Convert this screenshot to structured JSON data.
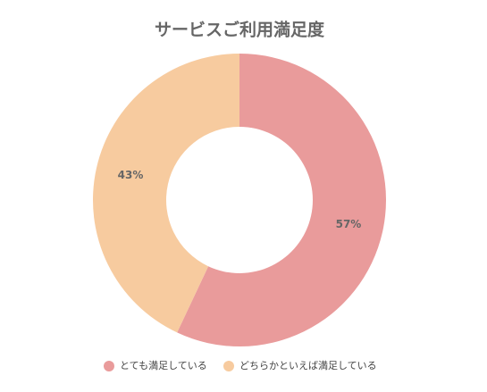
{
  "chart_data": {
    "type": "donut",
    "title": "サービスご利用満足度",
    "categories": [
      "とても満足している",
      "どちらかといえば満足している"
    ],
    "values": [
      57,
      43
    ],
    "value_labels": [
      "57%",
      "43%"
    ],
    "colors": [
      "#e99b9b",
      "#f7cb9f"
    ]
  }
}
